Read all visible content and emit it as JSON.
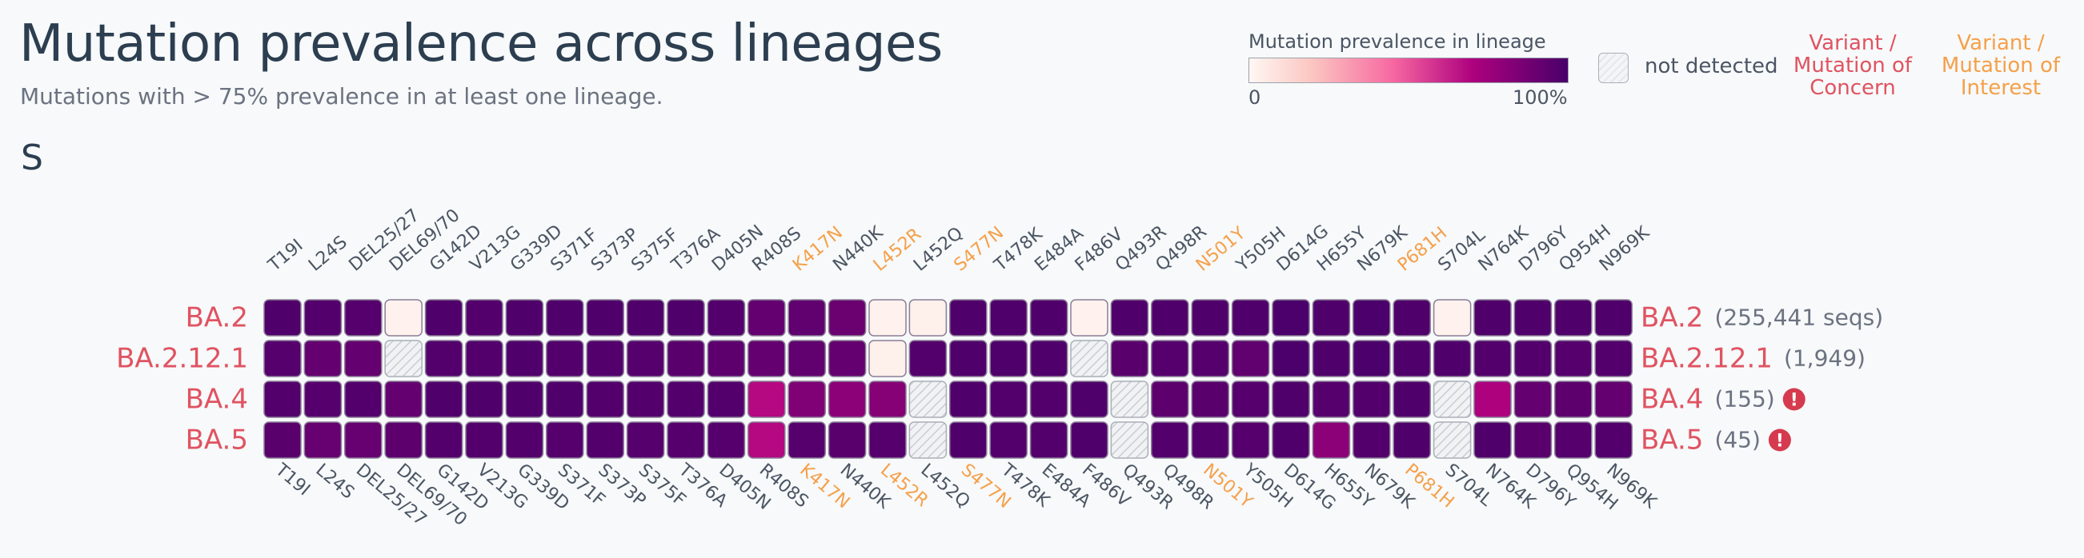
{
  "page": {
    "title": "Mutation prevalence across lineages",
    "subtitle": "Mutations with > 75% prevalence in at least one lineage.",
    "gene": "S"
  },
  "legend": {
    "title": "Mutation prevalence in lineage",
    "min_label": "0",
    "max_label": "100%",
    "not_detected_label": "not detected",
    "voc_label": "Variant / Mutation of Concern",
    "voi_label": "Variant / Mutation of Interest"
  },
  "colors": {
    "voc": "#e05361",
    "voi": "#f5a04a",
    "text": "#2c3e50",
    "muted": "#6b7280",
    "cell_border": "#8a7e96"
  },
  "chart_data": {
    "type": "heatmap",
    "title": "Mutation prevalence across lineages",
    "value_units": "prevalence 0-1; null = not detected",
    "mutations": [
      "T19I",
      "L24S",
      "DEL25/27",
      "DEL69/70",
      "G142D",
      "V213G",
      "G339D",
      "S371F",
      "S373P",
      "S375F",
      "T376A",
      "D405N",
      "R408S",
      "K417N",
      "N440K",
      "L452R",
      "L452Q",
      "S477N",
      "T478K",
      "E484A",
      "F486V",
      "Q493R",
      "Q498R",
      "N501Y",
      "Y505H",
      "D614G",
      "H655Y",
      "N679K",
      "P681H",
      "S704L",
      "N764K",
      "D796Y",
      "Q954H",
      "N969K"
    ],
    "mutation_highlight": [
      "",
      "",
      "",
      "",
      "",
      "",
      "",
      "",
      "",
      "",
      "",
      "",
      "",
      "voi",
      "",
      "voi",
      "",
      "voi",
      "",
      "",
      "",
      "",
      "",
      "voi",
      "",
      "",
      "",
      "",
      "voi",
      "",
      "",
      "",
      "",
      ""
    ],
    "lineages": [
      {
        "name": "BA.2",
        "count": "(255,441 seqs)",
        "alert": false,
        "values": [
          0.98,
          0.97,
          0.96,
          0.02,
          0.98,
          0.97,
          0.98,
          0.98,
          0.98,
          0.98,
          0.98,
          0.97,
          0.92,
          0.93,
          0.9,
          0.02,
          0.03,
          0.98,
          0.98,
          0.98,
          0.02,
          0.98,
          0.98,
          0.98,
          0.98,
          0.99,
          0.98,
          0.99,
          0.98,
          0.02,
          0.98,
          0.98,
          0.98,
          0.98
        ]
      },
      {
        "name": "BA.2.12.1",
        "count": "(1,949)",
        "alert": false,
        "values": [
          0.96,
          0.92,
          0.92,
          null,
          0.97,
          0.97,
          0.98,
          0.97,
          0.97,
          0.96,
          0.95,
          0.94,
          0.92,
          0.93,
          0.92,
          0.03,
          0.97,
          0.98,
          0.98,
          0.98,
          null,
          0.95,
          0.96,
          0.96,
          0.93,
          0.99,
          0.98,
          0.99,
          0.98,
          0.98,
          0.97,
          0.97,
          0.96,
          0.97
        ]
      },
      {
        "name": "BA.4",
        "count": "(155)",
        "alert": true,
        "values": [
          0.97,
          0.96,
          0.97,
          0.92,
          0.98,
          0.98,
          0.98,
          0.98,
          0.97,
          0.97,
          0.97,
          0.97,
          0.68,
          0.84,
          0.8,
          0.82,
          null,
          0.98,
          0.97,
          0.97,
          0.98,
          null,
          0.94,
          0.95,
          0.96,
          0.98,
          0.96,
          0.97,
          0.98,
          null,
          0.7,
          0.92,
          0.94,
          0.92
        ]
      },
      {
        "name": "BA.5",
        "count": "(45)",
        "alert": true,
        "values": [
          0.95,
          0.91,
          0.91,
          0.94,
          0.97,
          0.97,
          0.97,
          0.96,
          0.97,
          0.96,
          0.96,
          0.96,
          0.68,
          0.96,
          0.95,
          0.96,
          null,
          0.98,
          0.97,
          0.97,
          0.98,
          null,
          0.97,
          0.97,
          0.96,
          0.98,
          0.8,
          0.97,
          0.98,
          null,
          0.98,
          0.95,
          0.96,
          0.97
        ]
      }
    ]
  }
}
